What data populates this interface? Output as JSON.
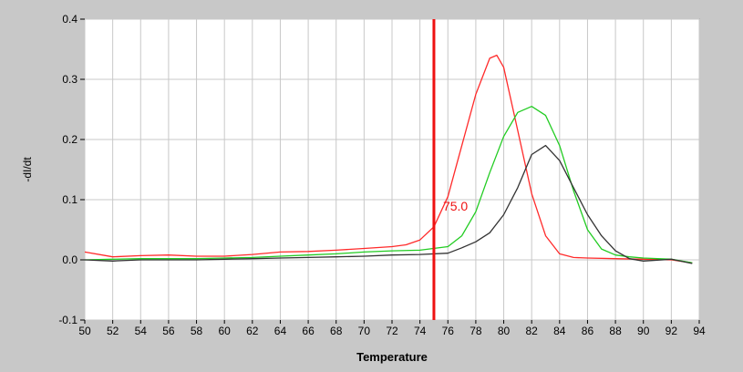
{
  "chart_data": {
    "type": "line",
    "title": "",
    "xlabel": "Temperature",
    "ylabel": "-dI/dt",
    "xlim": [
      50,
      94
    ],
    "ylim": [
      -0.1,
      0.4
    ],
    "grid": true,
    "x_ticks": [
      "50",
      "52",
      "54",
      "56",
      "58",
      "60",
      "62",
      "64",
      "66",
      "68",
      "70",
      "72",
      "74",
      "76",
      "78",
      "80",
      "82",
      "84",
      "86",
      "88",
      "90",
      "92",
      "94"
    ],
    "y_ticks": [
      "-0.1",
      "0.0",
      "0.1",
      "0.2",
      "0.3",
      "0.4"
    ],
    "colors": {
      "red": "#ff2a2a",
      "green": "#22cc22",
      "black": "#333333",
      "marker": "#ee1111",
      "plot_bg": "#ffffff",
      "grid": "#c8c8c8"
    },
    "marker": {
      "x": 75.0,
      "label": "75.0"
    },
    "series": [
      {
        "color": "#ff2a2a",
        "x": [
          50,
          52,
          54,
          56,
          58,
          60,
          62,
          64,
          66,
          68,
          70,
          72,
          73,
          74,
          75,
          76,
          77,
          78,
          79,
          79.5,
          80,
          81,
          82,
          83,
          84,
          85,
          86,
          88,
          90,
          92,
          93.5
        ],
        "y": [
          0.013,
          0.005,
          0.007,
          0.008,
          0.006,
          0.006,
          0.009,
          0.013,
          0.014,
          0.016,
          0.019,
          0.022,
          0.025,
          0.033,
          0.055,
          0.105,
          0.19,
          0.275,
          0.335,
          0.34,
          0.32,
          0.215,
          0.11,
          0.04,
          0.01,
          0.004,
          0.003,
          0.002,
          0.001,
          0.0,
          -0.005
        ]
      },
      {
        "color": "#22cc22",
        "x": [
          50,
          52,
          54,
          56,
          58,
          60,
          62,
          64,
          66,
          68,
          70,
          72,
          74,
          76,
          77,
          78,
          79,
          80,
          81,
          82,
          83,
          84,
          85,
          86,
          87,
          88,
          89,
          90,
          92,
          93.5
        ],
        "y": [
          0.0,
          0.001,
          0.002,
          0.002,
          0.002,
          0.003,
          0.004,
          0.006,
          0.008,
          0.01,
          0.013,
          0.015,
          0.016,
          0.022,
          0.04,
          0.08,
          0.145,
          0.205,
          0.245,
          0.255,
          0.24,
          0.19,
          0.115,
          0.05,
          0.018,
          0.008,
          0.005,
          0.003,
          0.001,
          -0.005
        ]
      },
      {
        "color": "#333333",
        "x": [
          50,
          52,
          54,
          56,
          58,
          60,
          62,
          64,
          66,
          68,
          70,
          72,
          74,
          76,
          77,
          78,
          79,
          80,
          81,
          82,
          83,
          84,
          85,
          86,
          87,
          88,
          89,
          90,
          92,
          93.5
        ],
        "y": [
          0.0,
          -0.002,
          0.0,
          0.0,
          0.0,
          0.001,
          0.002,
          0.003,
          0.004,
          0.005,
          0.006,
          0.008,
          0.009,
          0.011,
          0.02,
          0.03,
          0.045,
          0.075,
          0.12,
          0.175,
          0.19,
          0.165,
          0.12,
          0.075,
          0.04,
          0.015,
          0.002,
          -0.002,
          0.001,
          -0.006
        ]
      }
    ]
  }
}
